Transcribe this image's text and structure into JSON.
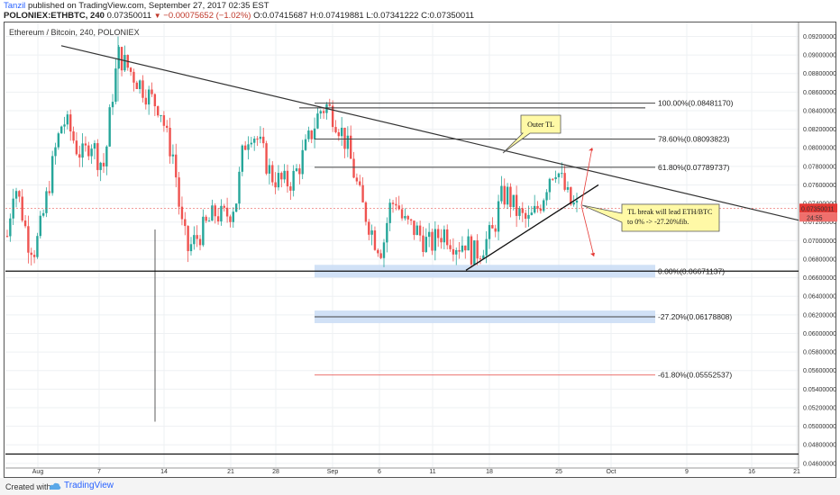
{
  "header": {
    "author": "Tanzil",
    "published": "published on TradingView.com, September 27, 2017 02:35 EST",
    "symbol": "POLONIEX:ETHBTC, 240",
    "price": "0.07350011",
    "change": "−0.00075652 (−1.02%)",
    "open": "O:0.07415687",
    "high": "H:0.07419881",
    "low": "L:0.07341222",
    "close": "C:0.07350011"
  },
  "pair_title": "Ethereum / Bitcoin, 240, POLONIEX",
  "footer": {
    "created": "Created with",
    "brand": "TradingView"
  },
  "colors": {
    "up": "#26a69a",
    "down": "#ef5350",
    "fib_zone": "#c9dcf4",
    "callout": "#fff9a6",
    "red_line": "#e53935"
  },
  "chart_data": {
    "type": "candlestick",
    "ylim": [
      0.0455,
      0.0935
    ],
    "x_ticks": [
      "Aug",
      "7",
      "14",
      "21",
      "28",
      "Sep",
      "6",
      "11",
      "18",
      "25",
      "Oct",
      "9",
      "16",
      "21"
    ],
    "y_ticks": [
      "0.09200000",
      "0.09000000",
      "0.08800000",
      "0.08600000",
      "0.08400000",
      "0.08200000",
      "0.08000000",
      "0.07800000",
      "0.07600000",
      "0.07400000",
      "0.07200000",
      "0.07000000",
      "0.06800000",
      "0.06600000",
      "0.06400000",
      "0.06200000",
      "0.06000000",
      "0.05800000",
      "0.05600000",
      "0.05400000",
      "0.05200000",
      "0.05000000",
      "0.04800000",
      "0.04600000"
    ],
    "last_price_label": "0.07350011",
    "countdown_label": "24:55",
    "fib_levels": [
      {
        "label": "100.00%(0.08481170)",
        "value": 0.0848117
      },
      {
        "label": "78.60%(0.08093823)",
        "value": 0.08093823
      },
      {
        "label": "61.80%(0.07789737)",
        "value": 0.07789737
      },
      {
        "label": "0.00%(0.06671137)",
        "value": 0.06671137
      },
      {
        "label": "-27.20%(0.06178808)",
        "value": 0.06178808
      },
      {
        "label": "-61.80%(0.05552537)",
        "value": 0.05552537
      }
    ],
    "annotations": [
      {
        "text": "Outer TL"
      },
      {
        "text_lines": [
          "TL break will lead ETH/BTC",
          "to 0% -> -27.20%fib."
        ]
      }
    ],
    "price_path": [
      0.0705,
      0.0765,
      0.0735,
      0.07,
      0.069,
      0.072,
      0.076,
      0.08,
      0.083,
      0.082,
      0.08,
      0.079,
      0.081,
      0.079,
      0.078,
      0.085,
      0.09,
      0.089,
      0.088,
      0.087,
      0.086,
      0.085,
      0.0845,
      0.081,
      0.079,
      0.072,
      0.069,
      0.07,
      0.071,
      0.072,
      0.073,
      0.0725,
      0.073,
      0.0745,
      0.08,
      0.082,
      0.081,
      0.079,
      0.077,
      0.0765,
      0.0762,
      0.0765,
      0.078,
      0.08,
      0.082,
      0.084,
      0.0845,
      0.0835,
      0.082,
      0.08,
      0.077,
      0.074,
      0.072,
      0.07,
      0.069,
      0.0735,
      0.0745,
      0.072,
      0.0715,
      0.071,
      0.07,
      0.0695,
      0.0705,
      0.071,
      0.07,
      0.0695,
      0.07,
      0.0685,
      0.069,
      0.07,
      0.071,
      0.0745,
      0.075,
      0.0735,
      0.0725,
      0.072,
      0.073,
      0.0745,
      0.077,
      0.078,
      0.076,
      0.074,
      0.0735
    ]
  }
}
